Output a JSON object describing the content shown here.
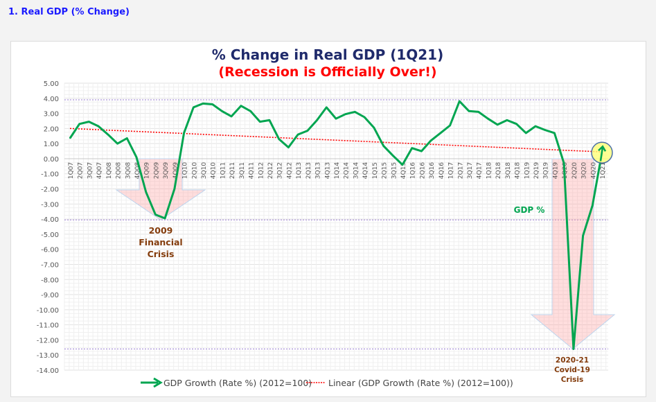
{
  "page": {
    "heading": "1. Real GDP (% Change)"
  },
  "chart_data": {
    "type": "line",
    "title": "% Change in Real GDP (1Q21)",
    "subtitle": "(Recession is Officially Over!)",
    "xlabel": "",
    "ylabel": "",
    "ylim": [
      -14,
      5
    ],
    "yticks": [
      "5.00",
      "4.00",
      "3.00",
      "2.00",
      "1.00",
      "0.00",
      "-1.00",
      "-2.00",
      "-3.00",
      "-4.00",
      "-5.00",
      "-6.00",
      "-7.00",
      "-8.00",
      "-9.00",
      "-10.00",
      "-11.00",
      "-12.00",
      "-13.00",
      "-14.00"
    ],
    "grid": true,
    "legend_position": "bottom",
    "categories": [
      "1Q07",
      "2Q07",
      "3Q07",
      "4Q07",
      "1Q08",
      "2Q08",
      "3Q08",
      "4Q08",
      "1Q09",
      "2Q09",
      "3Q09",
      "4Q09",
      "1Q10",
      "2Q10",
      "3Q10",
      "4Q10",
      "1Q11",
      "2Q11",
      "3Q11",
      "4Q11",
      "1Q12",
      "2Q12",
      "3Q12",
      "4Q12",
      "1Q13",
      "2Q13",
      "3Q13",
      "4Q13",
      "1Q14",
      "2Q14",
      "3Q14",
      "4Q14",
      "1Q15",
      "2Q15",
      "3Q15",
      "4Q15",
      "1Q16",
      "2Q16",
      "3Q16",
      "4Q16",
      "1Q17",
      "2Q17",
      "3Q17",
      "4Q17",
      "1Q18",
      "2Q18",
      "3Q18",
      "4Q18",
      "1Q19",
      "2Q19",
      "3Q19",
      "4Q19",
      "1Q20",
      "2Q20",
      "3Q20",
      "4Q20",
      "1Q21"
    ],
    "series": [
      {
        "name": "GDP Growth (Rate %) (2012=100)",
        "color": "#00a550",
        "values": [
          1.35,
          2.3,
          2.45,
          2.15,
          1.6,
          1.0,
          1.35,
          0.1,
          -2.2,
          -3.7,
          -3.95,
          -2.0,
          1.7,
          3.4,
          3.65,
          3.6,
          3.15,
          2.8,
          3.5,
          3.15,
          2.45,
          2.55,
          1.3,
          0.75,
          1.6,
          1.85,
          2.55,
          3.4,
          2.65,
          2.95,
          3.1,
          2.75,
          2.05,
          0.85,
          0.2,
          -0.4,
          0.7,
          0.5,
          1.2,
          1.7,
          2.2,
          3.8,
          3.15,
          3.1,
          2.65,
          2.25,
          2.55,
          2.3,
          1.7,
          2.15,
          1.9,
          1.7,
          -0.3,
          -12.6,
          -5.1,
          -3.1,
          0.4
        ]
      },
      {
        "name": "Linear (GDP Growth (Rate %) (2012=100))",
        "color": "#ff0000",
        "style": "dotted",
        "start": 2.0,
        "end": 0.45
      }
    ],
    "reference_lines": [
      3.9,
      -4.05,
      -12.6
    ],
    "reference_color": "#9b7fd4",
    "annotations": [
      {
        "lines": [
          "2009",
          "Financial",
          "Crisis"
        ],
        "color": "#843c0c",
        "at": "3Q09"
      },
      {
        "lines": [
          "GDP %"
        ],
        "color": "#00a550"
      },
      {
        "lines": [
          "2020-21",
          "Covid-19",
          "Crisis"
        ],
        "color": "#843c0c",
        "at": "2Q20"
      }
    ],
    "title_color": "#1f2a6b",
    "subtitle_color": "#ff0000"
  }
}
